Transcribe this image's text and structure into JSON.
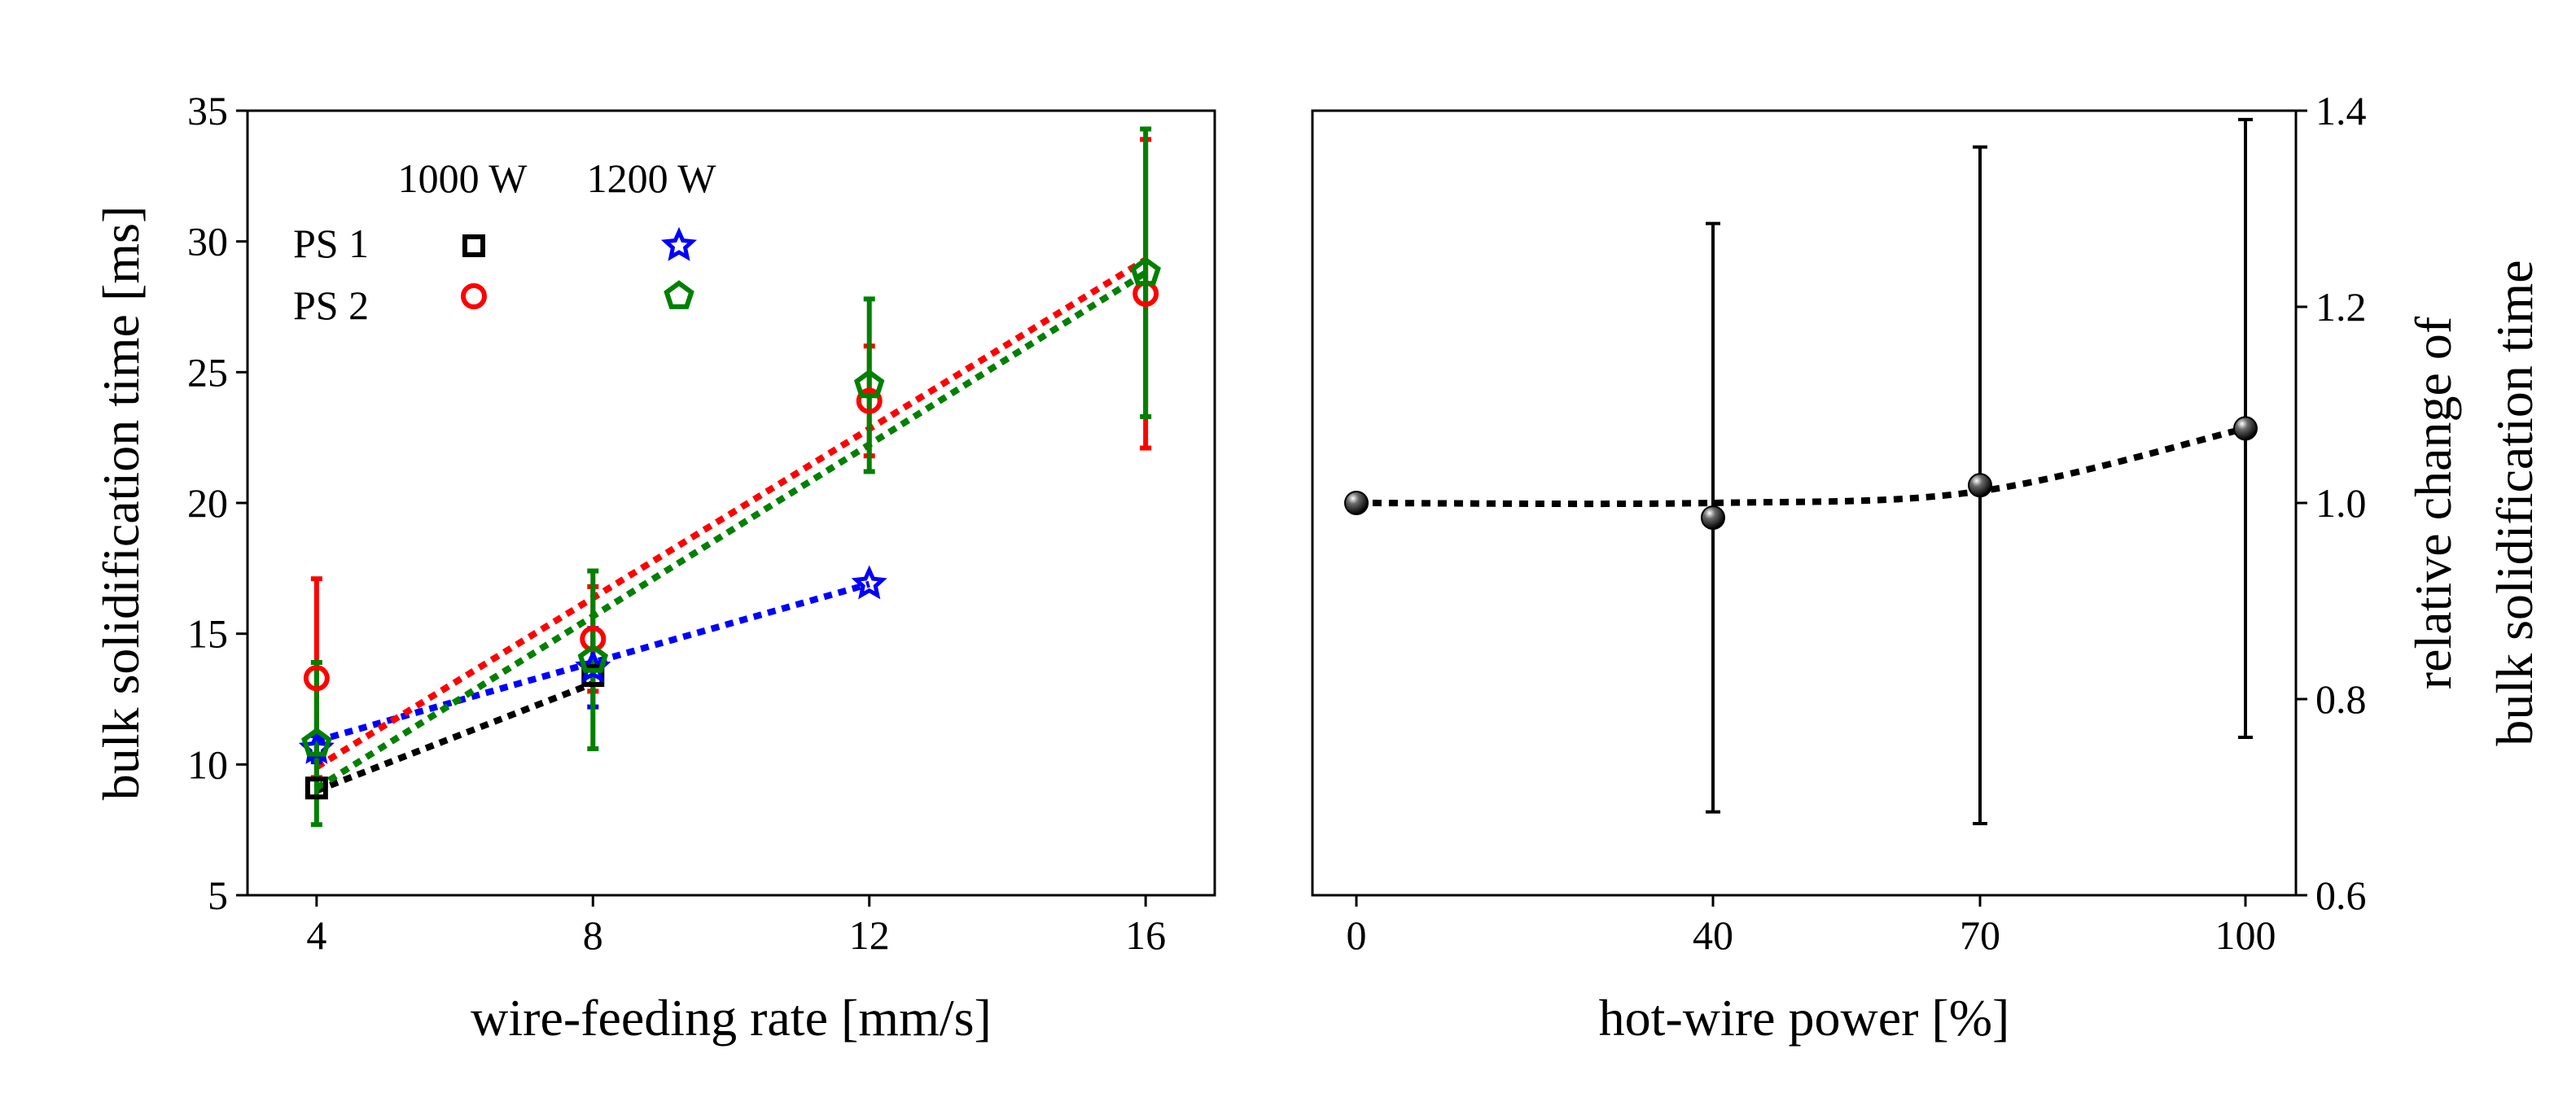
{
  "chart_data": [
    {
      "type": "scatter",
      "panel": "left",
      "xlabel": "wire-feeding rate [mm/s]",
      "ylabel": "bulk solidification time [ms]",
      "xlim": [
        3,
        17
      ],
      "ylim": [
        5,
        35
      ],
      "xticks": [
        4,
        8,
        12,
        16
      ],
      "yticks": [
        5,
        10,
        15,
        20,
        25,
        30,
        35
      ],
      "legend": {
        "columns": [
          "1000 W",
          "1200 W"
        ],
        "rows": [
          "PS 1",
          "PS 2"
        ]
      },
      "series": [
        {
          "name": "PS 1 1000 W",
          "marker": "square",
          "color": "#000000",
          "x": [
            4,
            8
          ],
          "y": [
            9.1,
            13.4
          ],
          "yerr": [
            0,
            0
          ],
          "fit": [
            [
              4,
              9.0
            ],
            [
              8,
              13.1
            ]
          ]
        },
        {
          "name": "PS 1 1200 W",
          "marker": "star",
          "color": "#0000ff",
          "x": [
            4,
            8,
            12
          ],
          "y": [
            10.6,
            13.7,
            16.9
          ],
          "yerr": [
            0.5,
            1.5,
            0
          ],
          "fit": [
            [
              4,
              10.9
            ],
            [
              12,
              16.9
            ]
          ]
        },
        {
          "name": "PS 2 1000 W",
          "marker": "circle",
          "color": "#ff0000",
          "x": [
            4,
            8,
            12,
            16
          ],
          "y": [
            13.3,
            14.8,
            23.9,
            28.0
          ],
          "yerr": [
            3.8,
            2.0,
            2.1,
            5.9
          ],
          "fit": [
            [
              4,
              9.9
            ],
            [
              16,
              29.3
            ]
          ]
        },
        {
          "name": "PS 2 1200 W",
          "marker": "pentagon",
          "color": "#008000",
          "x": [
            4,
            8,
            12,
            16
          ],
          "y": [
            10.8,
            14.0,
            24.5,
            28.8
          ],
          "yerr": [
            3.1,
            3.4,
            3.3,
            5.5
          ],
          "fit": [
            [
              4,
              9.1
            ],
            [
              16,
              28.8
            ]
          ]
        }
      ]
    },
    {
      "type": "scatter",
      "panel": "right",
      "xlabel": "hot-wire power [%]",
      "ylabel_lines": [
        "relative change of",
        "bulk solidification time"
      ],
      "ylim": [
        0.6,
        1.4
      ],
      "yticks": [
        0.6,
        0.8,
        1.0,
        1.2,
        1.4
      ],
      "categories": [
        "0",
        "40",
        "70",
        "100"
      ],
      "series": [
        {
          "name": "relative change",
          "marker": "sphere",
          "color": "#000000",
          "values": [
            1.0,
            0.985,
            1.018,
            1.076
          ],
          "yerr": [
            0,
            0.3,
            0.345,
            0.315
          ],
          "fit": [
            1.0,
            1.0,
            1.012,
            1.076
          ]
        }
      ]
    }
  ]
}
